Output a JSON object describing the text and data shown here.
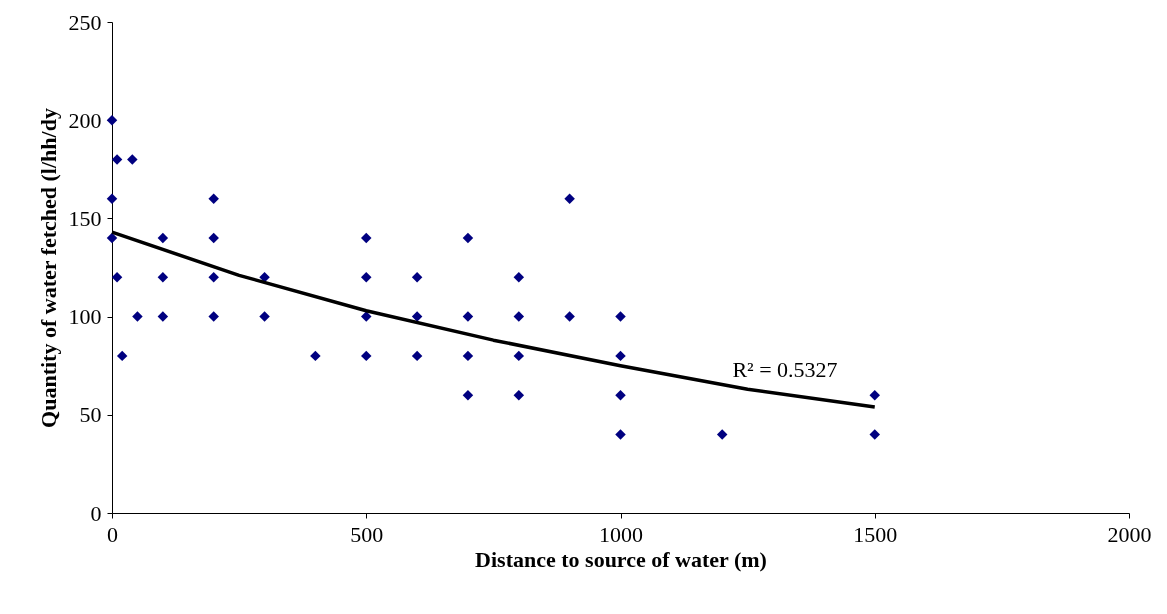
{
  "chart_data": {
    "type": "scatter",
    "xlabel": "Distance to source of water (m)",
    "ylabel": "Quantity of water fetched (l/hh/dy",
    "xlim": [
      0,
      2000
    ],
    "xticks": [
      0,
      500,
      1000,
      1500,
      2000
    ],
    "ylim": [
      0,
      250
    ],
    "yticks": [
      0,
      50,
      100,
      150,
      200,
      250
    ],
    "grid": false,
    "series": [
      {
        "marker": "diamond",
        "color": "#000080",
        "x": [
          0,
          0,
          0,
          10,
          10,
          20,
          40,
          50,
          100,
          100,
          100,
          200,
          200,
          200,
          200,
          300,
          300,
          400,
          500,
          500,
          500,
          500,
          600,
          600,
          600,
          700,
          700,
          700,
          700,
          800,
          800,
          800,
          800,
          900,
          900,
          1000,
          1000,
          1000,
          1000,
          1200,
          1500,
          1500
        ],
        "values": [
          200,
          160,
          140,
          180,
          120,
          80,
          180,
          100,
          140,
          120,
          100,
          160,
          140,
          120,
          100,
          120,
          100,
          80,
          140,
          120,
          100,
          80,
          120,
          100,
          80,
          140,
          100,
          80,
          60,
          120,
          100,
          80,
          60,
          160,
          100,
          100,
          80,
          60,
          40,
          40,
          60,
          40
        ]
      },
      {
        "type": "line",
        "color": "#000000",
        "x": [
          0,
          250,
          500,
          750,
          1000,
          1250,
          1500
        ],
        "values": [
          143,
          121,
          103,
          88,
          75,
          63,
          54
        ]
      }
    ],
    "annotations": [
      "R² = 0.5327"
    ]
  }
}
